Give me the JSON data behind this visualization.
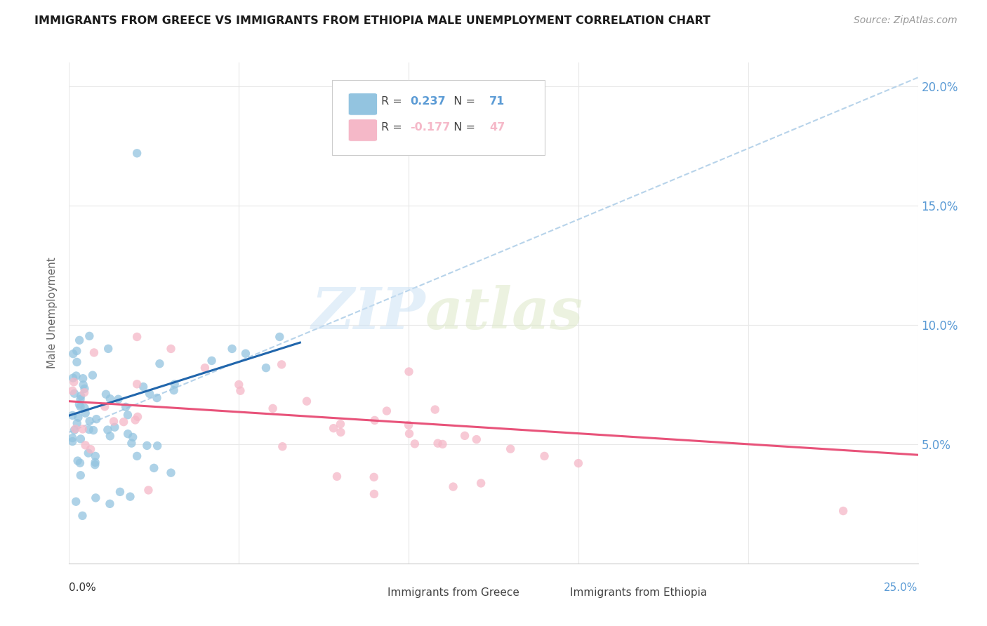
{
  "title": "IMMIGRANTS FROM GREECE VS IMMIGRANTS FROM ETHIOPIA MALE UNEMPLOYMENT CORRELATION CHART",
  "source": "Source: ZipAtlas.com",
  "ylabel": "Male Unemployment",
  "greece_color": "#93c4e0",
  "ethiopia_color": "#f5b8c8",
  "trend_greece_color": "#2166ac",
  "trend_ethiopia_color": "#e8537a",
  "trend_dashed_color": "#b0cfe8",
  "legend_greece_label": "Immigrants from Greece",
  "legend_ethiopia_label": "Immigrants from Ethiopia",
  "R_greece": 0.237,
  "N_greece": 71,
  "R_ethiopia": -0.177,
  "N_ethiopia": 47,
  "watermark_zip": "ZIP",
  "watermark_atlas": "atlas",
  "background_color": "#ffffff",
  "grid_color": "#e8e8e8",
  "xlim": [
    0.0,
    0.25
  ],
  "ylim": [
    0.0,
    0.21
  ],
  "x_ticks": [
    0.0,
    0.05,
    0.1,
    0.15,
    0.2,
    0.25
  ],
  "y_ticks": [
    0.0,
    0.05,
    0.1,
    0.15,
    0.2
  ],
  "y_right_labels": [
    "",
    "5.0%",
    "10.0%",
    "15.0%",
    "20.0%"
  ],
  "right_label_color": "#5b9bd5",
  "x_left_label": "0.0%",
  "x_right_label": "25.0%",
  "x_left_color": "#333333",
  "x_right_color": "#5b9bd5"
}
